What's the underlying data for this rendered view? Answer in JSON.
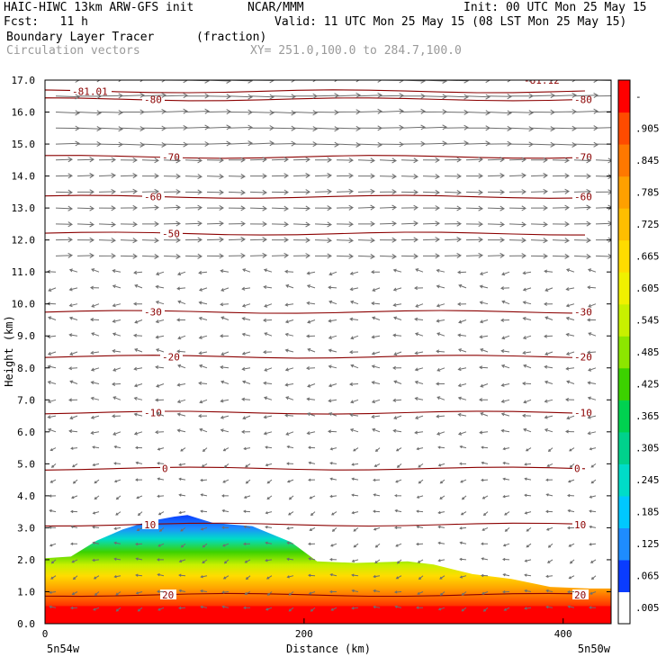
{
  "header": {
    "title": "HAIC-HIWC 13km ARW-GFS init",
    "org": "NCAR/MMM",
    "init": "Init: 00 UTC Mon 25 May 15",
    "fcst": "Fcst:   11 h",
    "valid": "Valid: 11 UTC Mon 25 May 15 (08 LST Mon 25 May 15)",
    "field": "Boundary Layer Tracer",
    "field_units": "(fraction)",
    "vectors": "Circulation vectors",
    "xy": "XY= 251.0,100.0 to 284.7,100.0"
  },
  "chart_data": {
    "type": "heatmap",
    "title": "Boundary Layer Tracer",
    "ylabel": "Height (km)",
    "xlabel": "Distance (km)",
    "ylim": [
      0,
      17
    ],
    "xlim": [
      0,
      437
    ],
    "y_ticks": [
      "0.0",
      "1.0",
      "2.0",
      "3.0",
      "4.0",
      "5.0",
      "6.0",
      "7.0",
      "8.0",
      "9.0",
      "10.0",
      "11.0",
      "12.0",
      "13.0",
      "14.0",
      "15.0",
      "16.0",
      "17.0"
    ],
    "x_ticks": [
      0,
      200,
      400
    ],
    "x_ticks_labels": [
      "0",
      "200",
      "400"
    ],
    "x_end_labels": [
      "5n54w",
      "5n50w"
    ],
    "colorbar": {
      "labels": [
        ".005",
        ".065",
        ".125",
        ".185",
        ".245",
        ".305",
        ".365",
        ".425",
        ".485",
        ".545",
        ".605",
        ".665",
        ".725",
        ".785",
        ".845",
        ".905",
        "-"
      ],
      "colors": [
        "#ffffff",
        "#0a3cff",
        "#1e8cff",
        "#00c8ff",
        "#00dcc8",
        "#00d28c",
        "#00d250",
        "#3cd200",
        "#8ce600",
        "#c8f000",
        "#f0f000",
        "#ffdc00",
        "#ffbe00",
        "#ffa000",
        "#ff7800",
        "#ff4b00",
        "#ff0000"
      ]
    },
    "tracer_top_km": [
      [
        0,
        2.05
      ],
      [
        20,
        2.1
      ],
      [
        40,
        2.6
      ],
      [
        60,
        2.95
      ],
      [
        80,
        3.2
      ],
      [
        100,
        3.35
      ],
      [
        110,
        3.4
      ],
      [
        130,
        3.15
      ],
      [
        160,
        3.05
      ],
      [
        190,
        2.55
      ],
      [
        210,
        1.95
      ],
      [
        240,
        1.9
      ],
      [
        280,
        1.95
      ],
      [
        300,
        1.85
      ],
      [
        330,
        1.55
      ],
      [
        360,
        1.4
      ],
      [
        390,
        1.15
      ],
      [
        420,
        1.1
      ],
      [
        437,
        1.1
      ]
    ],
    "temperature_contours": [
      {
        "label": "20",
        "y_km": 0.9
      },
      {
        "label": "10",
        "y_km": 3.1
      },
      {
        "label": "0",
        "y_km": 4.85
      },
      {
        "label": "-10",
        "y_km": 6.6
      },
      {
        "label": "-20",
        "y_km": 8.35
      },
      {
        "label": "-30",
        "y_km": 9.75
      },
      {
        "label": "-50",
        "y_km": 12.2
      },
      {
        "label": "-60",
        "y_km": 13.35
      },
      {
        "label": "-70",
        "y_km": 14.6
      },
      {
        "label": "-80",
        "y_km": 16.4
      },
      {
        "label": "-81.01",
        "y_km": 16.65
      }
    ],
    "contour_labels_right": [
      "-80",
      "-70",
      "-60",
      "-30",
      "-20",
      "-10",
      "0",
      "10",
      "20"
    ],
    "top_right_fragment": "-81.12"
  }
}
